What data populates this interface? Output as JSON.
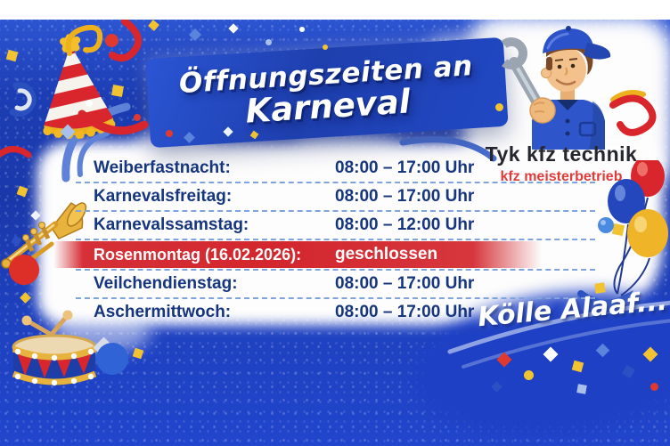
{
  "header": {
    "title_line1": "Öffnungszeiten an",
    "title_line2": "Karneval"
  },
  "brand": {
    "name": "Tyk kfz technik",
    "tagline": "kfz meisterbetrieb",
    "mascot": "mechanic-with-wrench"
  },
  "schedule": {
    "rows": [
      {
        "label": "Weiberfastnacht:",
        "time": "08:00 – 17:00 Uhr",
        "closed": false
      },
      {
        "label": "Karnevalsfreitag:",
        "time": "08:00 – 17:00 Uhr",
        "closed": false
      },
      {
        "label": "Karnevalssamstag:",
        "time": "08:00 – 12:00 Uhr",
        "closed": false
      },
      {
        "label": "Rosenmontag (16.02.2026):",
        "time": "geschlossen",
        "closed": true
      },
      {
        "label": "Veilchendienstag:",
        "time": "08:00 – 17:00 Uhr",
        "closed": false
      },
      {
        "label": "Aschermittwoch:",
        "time": "08:00 – 17:00 Uhr",
        "closed": false
      }
    ]
  },
  "footer": {
    "greeting": "Kölle Alaaf..."
  },
  "colors": {
    "background_blue": "#1e41c0",
    "banner_blue": "#2148c4",
    "schedule_text_blue": "#16357f",
    "closed_red": "#d3262d",
    "tagline_red": "#e23b3b",
    "accent_yellow": "#f2c331"
  }
}
